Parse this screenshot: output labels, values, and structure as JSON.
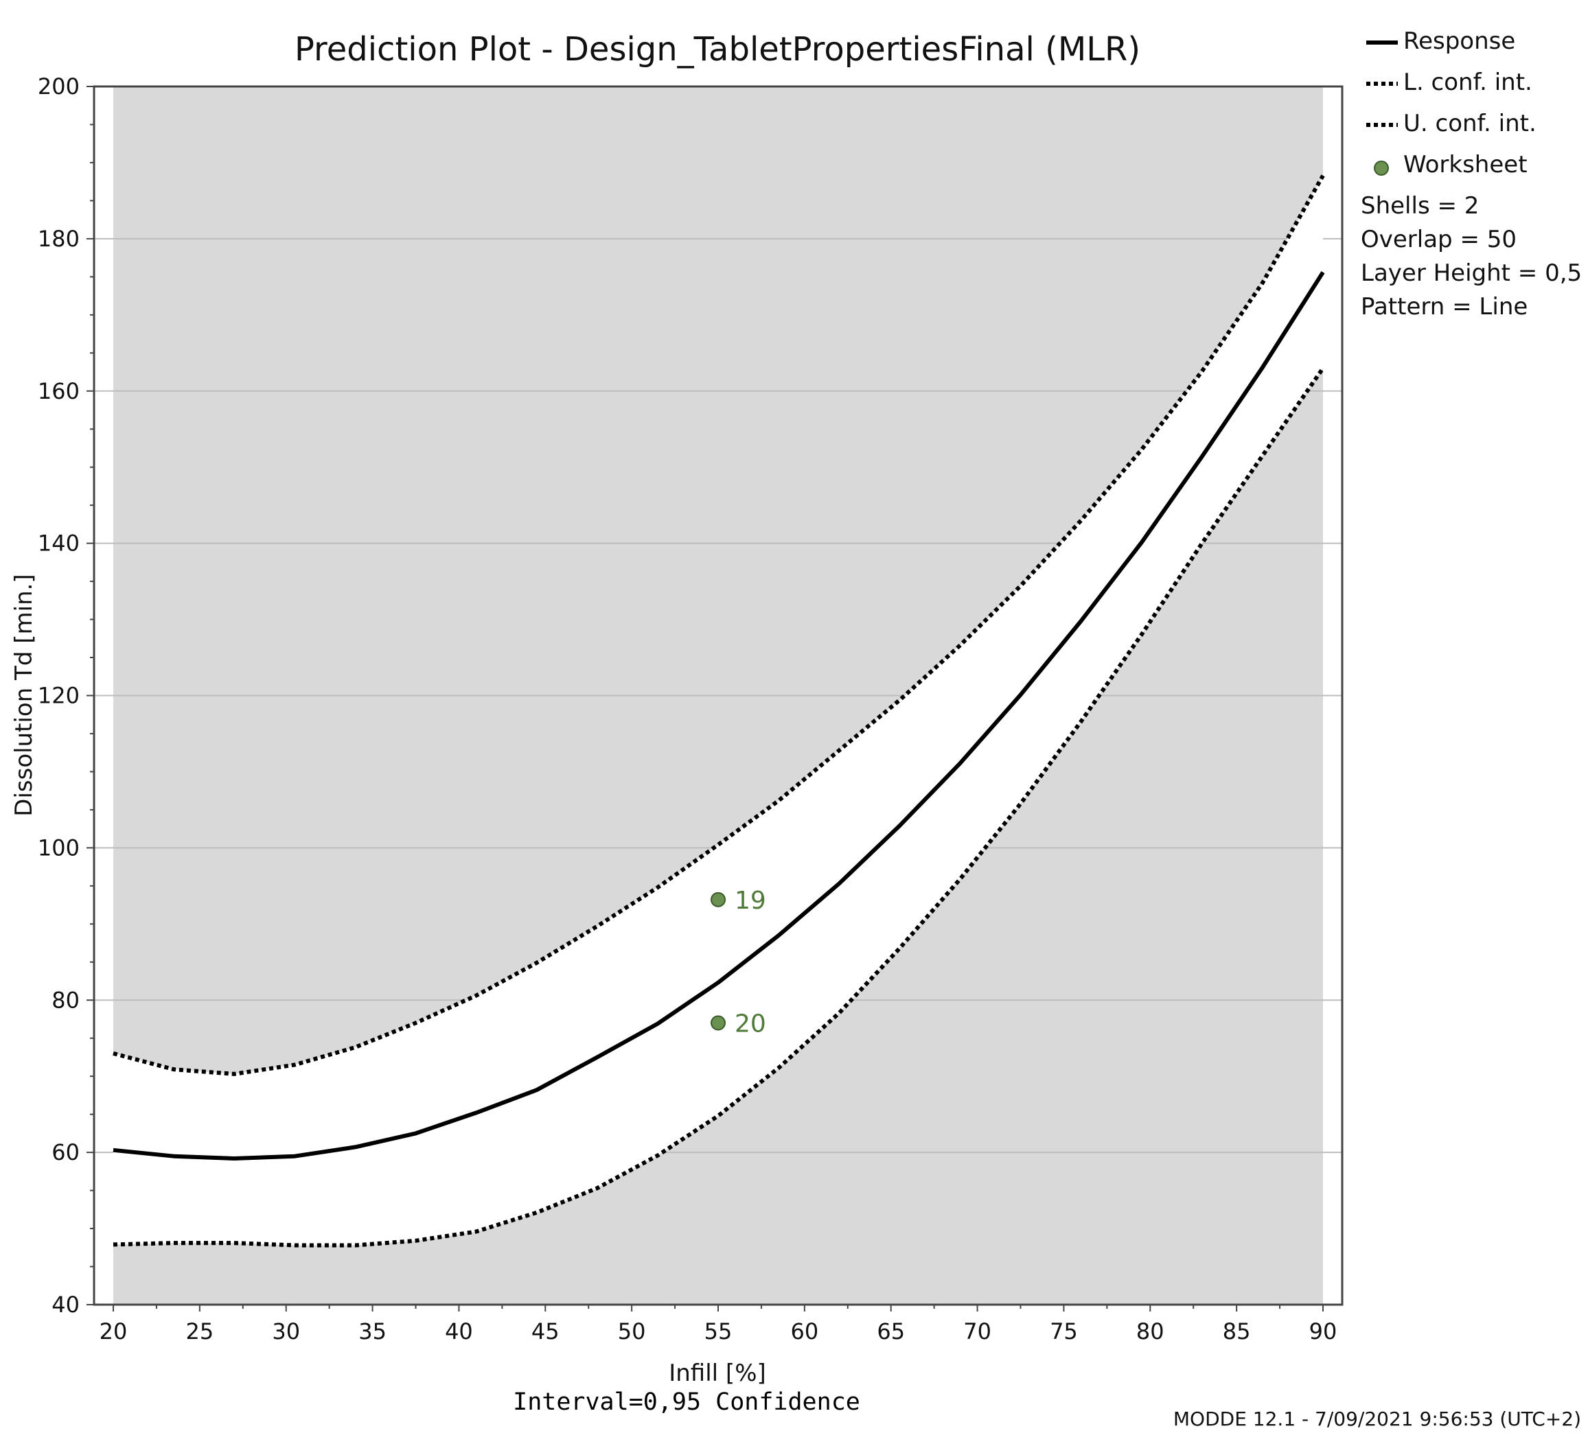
{
  "chart_data": {
    "type": "line",
    "title": "Prediction Plot - Design_TabletPropertiesFinal (MLR)",
    "xlabel": "Infill [%]",
    "ylabel": "Dissolution Td [min.]",
    "subtitle": "Interval=0,95 Confidence",
    "xlim": [
      20,
      90
    ],
    "ylim": [
      40,
      200
    ],
    "xticks": [
      20,
      25,
      30,
      35,
      40,
      45,
      50,
      55,
      60,
      65,
      70,
      75,
      80,
      85,
      90
    ],
    "yticks": [
      40,
      60,
      80,
      100,
      120,
      140,
      160,
      180,
      200
    ],
    "grid": "horizontal",
    "legend_position": "right",
    "series": [
      {
        "name": "Response",
        "style": "solid",
        "x": [
          20,
          23.5,
          27,
          30.5,
          34,
          37.5,
          41,
          44.5,
          48,
          51.5,
          55,
          58.5,
          62,
          65.5,
          69,
          72.5,
          76,
          79.5,
          83,
          86.5,
          90
        ],
        "y": [
          60.3,
          59.5,
          59.2,
          59.5,
          60.7,
          62.5,
          65.2,
          68.2,
          72.5,
          76.9,
          82.3,
          88.5,
          95.3,
          102.9,
          111.1,
          120.1,
          129.8,
          140.1,
          151.4,
          163.1,
          175.6
        ]
      },
      {
        "name": "L. conf. int.",
        "style": "dotted",
        "x": [
          20,
          23.5,
          27,
          30.5,
          34,
          37.5,
          41,
          44.5,
          48,
          51.5,
          55,
          58.5,
          62,
          65.5,
          69,
          72.5,
          76,
          79.5,
          83,
          86.5,
          90
        ],
        "y": [
          47.9,
          48.1,
          48.1,
          47.8,
          47.8,
          48.4,
          49.6,
          52.1,
          55.3,
          59.6,
          64.8,
          71.1,
          78.3,
          86.8,
          95.9,
          105.8,
          116.6,
          128.0,
          140.0,
          151.5,
          163.0
        ]
      },
      {
        "name": "U. conf. int.",
        "style": "dotted",
        "x": [
          20,
          23.5,
          27,
          30.5,
          34,
          37.5,
          41,
          44.5,
          48,
          51.5,
          55,
          58.5,
          62,
          65.5,
          69,
          72.5,
          76,
          79.5,
          83,
          86.5,
          90
        ],
        "y": [
          73.0,
          70.9,
          70.3,
          71.5,
          73.8,
          77.0,
          80.6,
          84.9,
          89.7,
          94.8,
          100.4,
          106.2,
          112.8,
          119.4,
          126.6,
          134.4,
          143.0,
          152.3,
          162.6,
          174.2,
          188.3
        ]
      }
    ],
    "points": [
      {
        "name": "Worksheet",
        "label": "19",
        "x": 55,
        "y": 93.2
      },
      {
        "name": "Worksheet",
        "label": "20",
        "x": 55,
        "y": 77.0
      }
    ],
    "annotations": [
      "Shells = 2",
      "Overlap = 50",
      "Layer Height = 0,5",
      "Pattern = Line"
    ],
    "footer": "MODDE 12.1 - 7/09/2021 9:56:53 (UTC+2)"
  },
  "colors": {
    "plot_background": "#d9d9d9",
    "band_fill": "#ffffff",
    "gridline": "#bdbdbd",
    "line": "#000000",
    "point_fill": "#6a9150",
    "point_stroke": "#3a5a2a",
    "point_label": "#4f7a3a",
    "footer_text": "#8c8c8c"
  }
}
